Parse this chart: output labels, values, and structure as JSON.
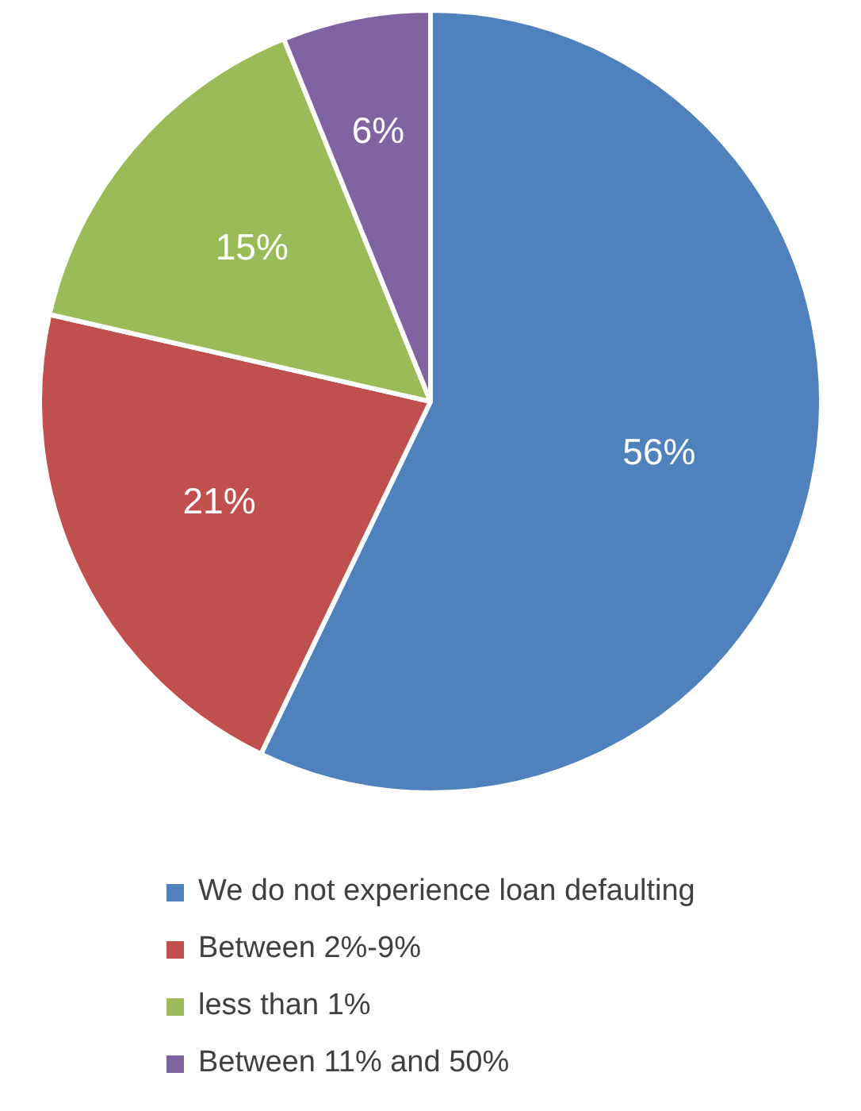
{
  "chart_data": {
    "type": "pie",
    "categories": [
      "We do not experience loan defaulting",
      "Between 2%-9%",
      "less than 1%",
      "Between 11% and 50%"
    ],
    "values": [
      56,
      21,
      15,
      6
    ],
    "colors": [
      "#4f81bd",
      "#c0504d",
      "#9bbb59",
      "#8064a2"
    ],
    "value_labels": [
      "56%",
      "21%",
      "15%",
      "6%"
    ],
    "legend": "bottom"
  }
}
